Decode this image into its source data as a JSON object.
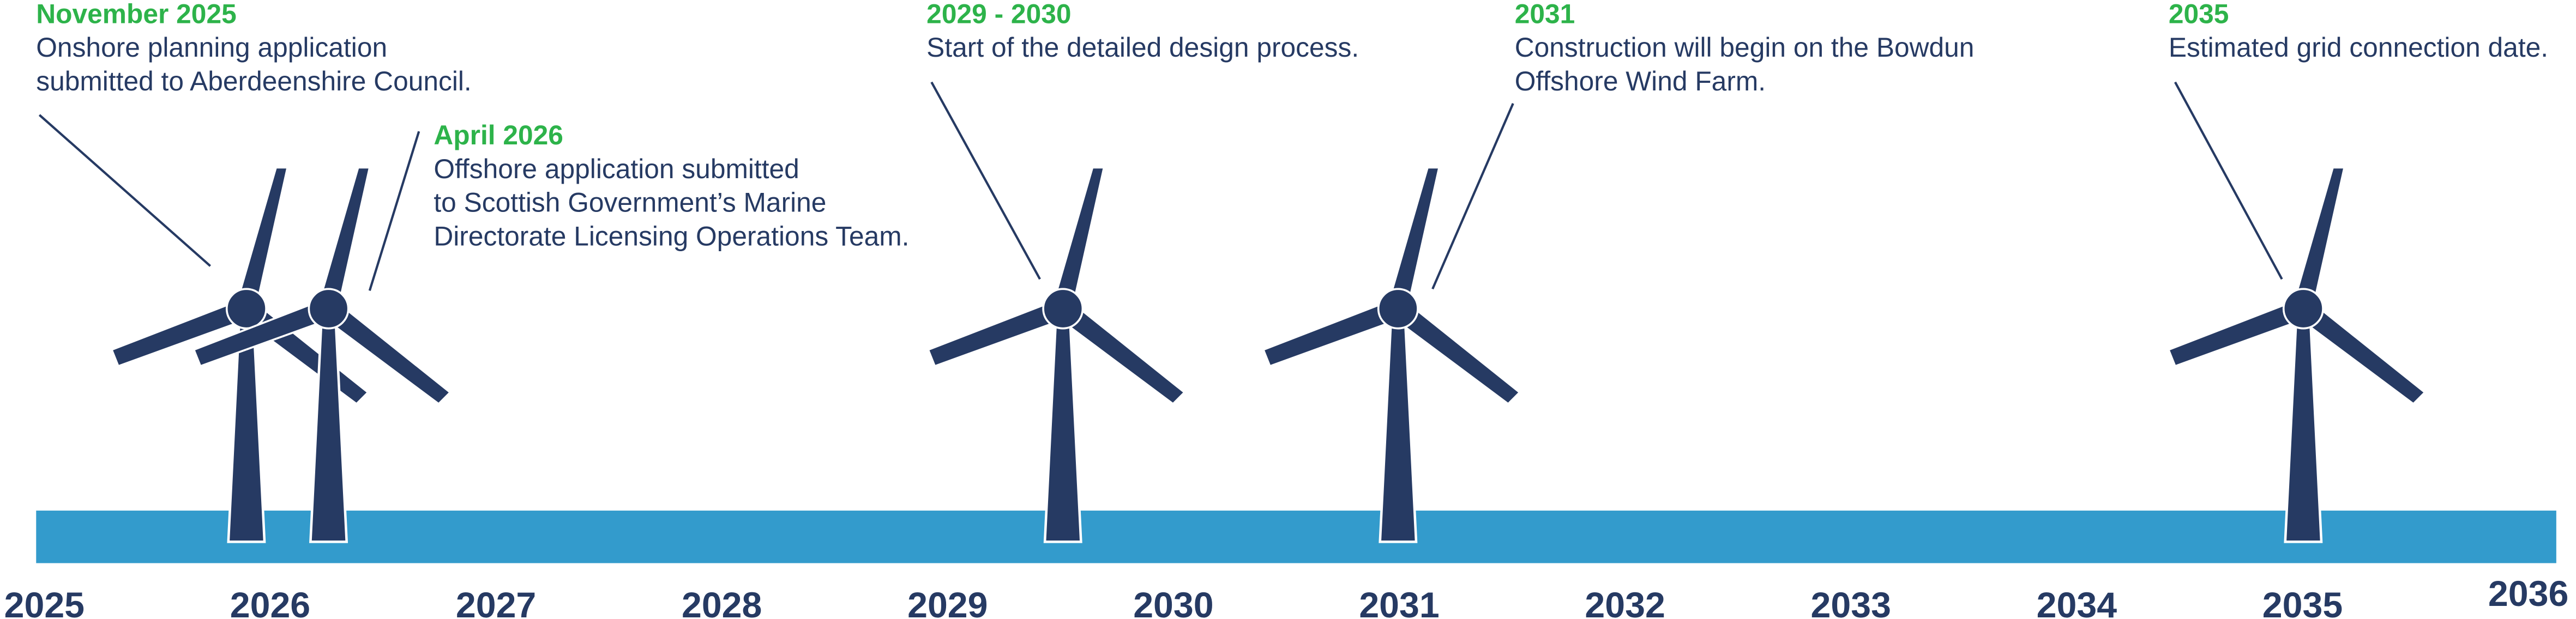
{
  "milestones": [
    {
      "date": "November 2025",
      "lines": [
        "Onshore planning application",
        "submitted to Aberdeenshire Council."
      ]
    },
    {
      "date": "April 2026",
      "lines": [
        "Offshore application submitted",
        "to Scottish Government’s Marine",
        "Directorate Licensing Operations Team."
      ]
    },
    {
      "date": "2029 - 2030",
      "lines": [
        "Start of the detailed design process."
      ]
    },
    {
      "date": "2031",
      "lines": [
        "Construction will begin on the Bowdun",
        "Offshore Wind Farm."
      ]
    },
    {
      "date": "2035",
      "lines": [
        "Estimated grid connection date."
      ]
    }
  ],
  "years": [
    "2025",
    "2026",
    "2027",
    "2028",
    "2029",
    "2030",
    "2031",
    "2032",
    "2033",
    "2034",
    "2035",
    "2036"
  ]
}
